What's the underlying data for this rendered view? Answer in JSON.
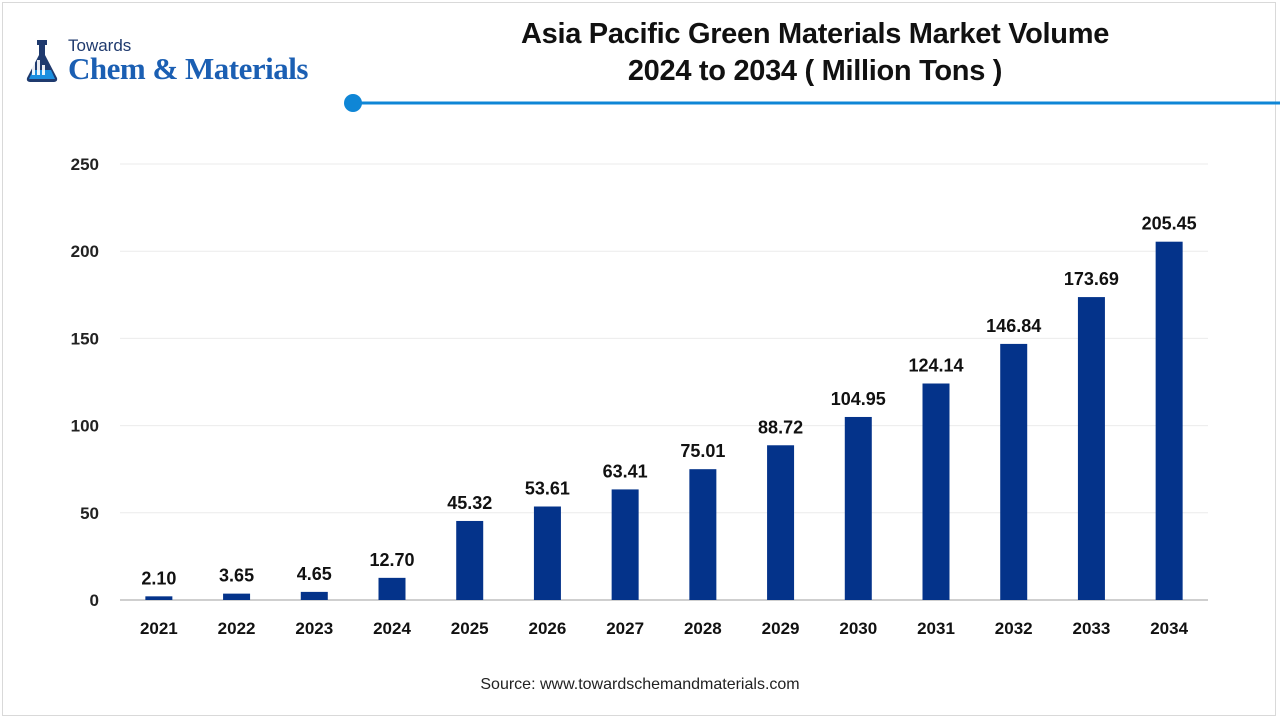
{
  "logo": {
    "top_word": "Towards",
    "brand": "Chem & Materials",
    "icon": "flask-icon"
  },
  "title": {
    "line1": "Asia Pacific Green Materials Market Volume",
    "line2": "2024 to 2034 ( Million Tons )"
  },
  "source": "Source: www.towardschemandmaterials.com",
  "colors": {
    "bar": "#04338a",
    "accent": "#0f86d6",
    "brand": "#1b5fb3"
  },
  "chart_data": {
    "type": "bar",
    "categories": [
      "2021",
      "2022",
      "2023",
      "2024",
      "2025",
      "2026",
      "2027",
      "2028",
      "2029",
      "2030",
      "2031",
      "2032",
      "2033",
      "2034"
    ],
    "values": [
      2.1,
      3.65,
      4.65,
      12.7,
      45.32,
      53.61,
      63.41,
      75.01,
      88.72,
      104.95,
      124.14,
      146.84,
      173.69,
      205.45
    ],
    "value_labels": [
      "2.10",
      "3.65",
      "4.65",
      "12.70",
      "45.32",
      "53.61",
      "63.41",
      "75.01",
      "88.72",
      "104.95",
      "124.14",
      "146.84",
      "173.69",
      "205.45"
    ],
    "title": "Asia Pacific Green Materials Market Volume 2024 to 2034 ( Million Tons )",
    "xlabel": "",
    "ylabel": "",
    "ylim": [
      0,
      250
    ],
    "yticks": [
      0,
      50,
      100,
      150,
      200,
      250
    ],
    "grid": true,
    "legend": "none"
  }
}
